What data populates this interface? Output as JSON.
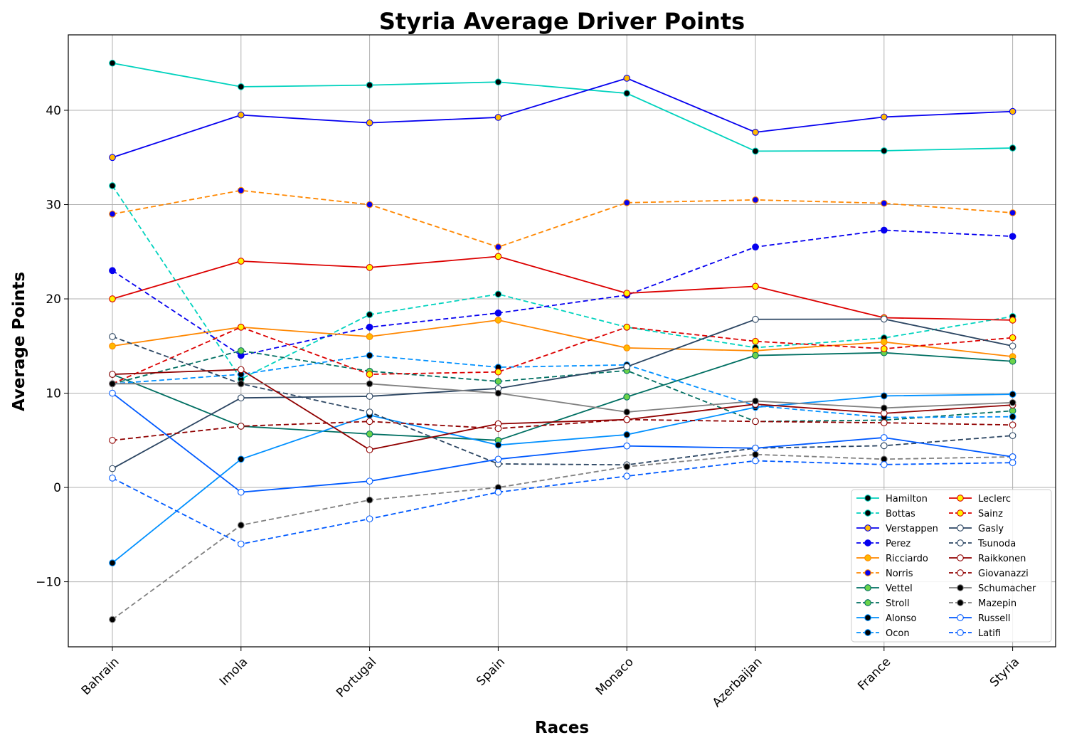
{
  "chart_data": {
    "type": "line",
    "title": "Styria Average Driver Points",
    "xlabel": "Races",
    "ylabel": "Average Points",
    "categories": [
      "Bahrain",
      "Imola",
      "Portugal",
      "Spain",
      "Monaco",
      "Azerbaijan",
      "France",
      "Styria"
    ],
    "yticks": [
      -10,
      0,
      10,
      20,
      30,
      40
    ],
    "ylim": [
      -16.9,
      48
    ],
    "grid": true,
    "legend_position": "bottom-right",
    "series": [
      {
        "name": "Hamilton",
        "color": "#00d2be",
        "dash": "solid",
        "marker_fill": "#000000",
        "values": [
          45,
          42.5,
          42.67,
          43,
          41.8,
          35.67,
          35.71,
          36
        ]
      },
      {
        "name": "Bottas",
        "color": "#00d2be",
        "dash": "dashed",
        "marker_fill": "#000000",
        "values": [
          32,
          11.5,
          18.33,
          20.5,
          17,
          14.83,
          15.86,
          18.13
        ]
      },
      {
        "name": "Verstappen",
        "color": "#0600ef",
        "dash": "solid",
        "marker_fill": "#ffb800",
        "values": [
          35,
          39.5,
          38.67,
          39.25,
          43.4,
          37.67,
          39.29,
          39.88
        ]
      },
      {
        "name": "Perez",
        "color": "#0600ef",
        "dash": "dashed",
        "marker_fill": "#0600ef",
        "values": [
          23,
          14,
          17,
          18.5,
          20.4,
          25.5,
          27.29,
          26.63
        ]
      },
      {
        "name": "Ricciardo",
        "color": "#ff8700",
        "dash": "solid",
        "marker_fill": "#ffb800",
        "values": [
          15,
          17,
          16,
          17.75,
          14.8,
          14.5,
          15.43,
          13.88
        ]
      },
      {
        "name": "Norris",
        "color": "#ff8700",
        "dash": "dashed",
        "marker_fill": "#0600ef",
        "values": [
          29,
          31.5,
          30,
          25.5,
          30.2,
          30.5,
          30.14,
          29.13
        ]
      },
      {
        "name": "Vettel",
        "color": "#006f62",
        "dash": "solid",
        "marker_fill": "#6cd34a",
        "values": [
          12,
          6.5,
          5.67,
          5,
          9.6,
          14,
          14.29,
          13.38
        ]
      },
      {
        "name": "Stroll",
        "color": "#006f62",
        "dash": "dashed",
        "marker_fill": "#6cd34a",
        "values": [
          11,
          14.5,
          12.33,
          11.25,
          12.4,
          7,
          7.14,
          8.13
        ]
      },
      {
        "name": "Alonso",
        "color": "#0090ff",
        "dash": "solid",
        "marker_fill": "#000000",
        "values": [
          -8,
          3,
          7.67,
          4.5,
          5.6,
          8.5,
          9.71,
          9.88
        ]
      },
      {
        "name": "Ocon",
        "color": "#0090ff",
        "dash": "dashed",
        "marker_fill": "#000000",
        "values": [
          11,
          12,
          14,
          12.75,
          13,
          8.67,
          7.43,
          7.5
        ]
      },
      {
        "name": "Leclerc",
        "color": "#dc0000",
        "dash": "solid",
        "marker_fill": "#fff500",
        "values": [
          20,
          24,
          23.33,
          24.5,
          20.6,
          21.33,
          18,
          17.75
        ]
      },
      {
        "name": "Sainz",
        "color": "#dc0000",
        "dash": "dashed",
        "marker_fill": "#fff500",
        "values": [
          11,
          17,
          12,
          12.25,
          17,
          15.5,
          14.71,
          15.88
        ]
      },
      {
        "name": "Gasly",
        "color": "#2b4562",
        "dash": "solid",
        "marker_fill": "#ffffff",
        "values": [
          2,
          9.5,
          9.67,
          10.5,
          12.8,
          17.83,
          17.86,
          15
        ]
      },
      {
        "name": "Tsunoda",
        "color": "#2b4562",
        "dash": "dashed",
        "marker_fill": "#ffffff",
        "values": [
          16,
          11,
          8,
          2.5,
          2.4,
          4.17,
          4.43,
          5.5
        ]
      },
      {
        "name": "Raikkonen",
        "color": "#900000",
        "dash": "solid",
        "marker_fill": "#ffffff",
        "values": [
          12,
          12.5,
          4,
          6.75,
          7.2,
          8.83,
          7.86,
          8.75
        ]
      },
      {
        "name": "Giovanazzi",
        "color": "#900000",
        "dash": "dashed",
        "marker_fill": "#ffffff",
        "values": [
          5,
          6.5,
          7,
          6.25,
          7.2,
          7,
          6.86,
          6.63
        ]
      },
      {
        "name": "Schumacher",
        "color": "#808080",
        "dash": "solid",
        "marker_fill": "#000000",
        "values": [
          11,
          11,
          11,
          10,
          8,
          9.17,
          8.43,
          9
        ]
      },
      {
        "name": "Mazepin",
        "color": "#808080",
        "dash": "dashed",
        "marker_fill": "#000000",
        "values": [
          -14,
          -4,
          -1.33,
          0,
          2.2,
          3.5,
          3,
          3.25
        ]
      },
      {
        "name": "Russell",
        "color": "#005aff",
        "dash": "solid",
        "marker_fill": "#ffffff",
        "values": [
          10,
          -0.5,
          0.67,
          3,
          4.4,
          4.17,
          5.29,
          3.25
        ]
      },
      {
        "name": "Latifi",
        "color": "#005aff",
        "dash": "dashed",
        "marker_fill": "#ffffff",
        "values": [
          1,
          -6,
          -3.33,
          -0.5,
          1.2,
          2.83,
          2.43,
          2.63
        ]
      }
    ]
  }
}
